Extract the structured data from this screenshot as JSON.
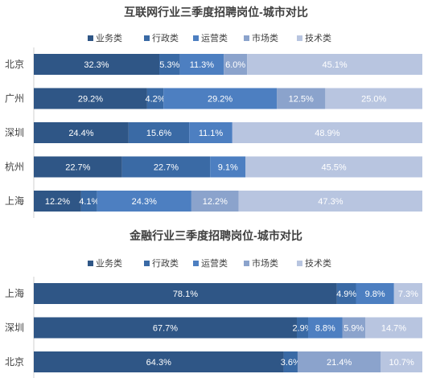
{
  "chart_data": [
    {
      "type": "bar",
      "stacked": "percent",
      "orientation": "horizontal",
      "title": "互联网行业三季度招聘岗位-城市对比",
      "legend_position": "top",
      "categories": [
        "北京",
        "广州",
        "深圳",
        "杭州",
        "上海"
      ],
      "series": [
        {
          "name": "业务类",
          "color": "#2f5686",
          "values": [
            32.3,
            29.2,
            24.4,
            22.7,
            12.2
          ],
          "labels": [
            "32.3%",
            "29.2%",
            "24.4%",
            "22.7%",
            "12.2%"
          ]
        },
        {
          "name": "行政类",
          "color": "#3a6aa5",
          "values": [
            5.3,
            4.2,
            15.6,
            22.7,
            4.1
          ],
          "labels": [
            "5.3%",
            "4.2%",
            "15.6%",
            "22.7%",
            "4.1%"
          ]
        },
        {
          "name": "运营类",
          "color": "#4d7fc1",
          "values": [
            11.3,
            29.2,
            11.1,
            9.1,
            24.3
          ],
          "labels": [
            "11.3%",
            "29.2%",
            "11.1%",
            "9.1%",
            "24.3%"
          ]
        },
        {
          "name": "市场类",
          "color": "#8ba3cc",
          "values": [
            6.0,
            12.5,
            0,
            0,
            12.2
          ],
          "labels": [
            "6.0%",
            "12.5%",
            "",
            "",
            "12.2%"
          ]
        },
        {
          "name": "技术类",
          "color": "#b8c5e0",
          "values": [
            45.1,
            25.0,
            48.9,
            45.5,
            47.3
          ],
          "labels": [
            "45.1%",
            "25.0%",
            "48.9%",
            "45.5%",
            "47.3%"
          ]
        }
      ]
    },
    {
      "type": "bar",
      "stacked": "percent",
      "orientation": "horizontal",
      "title": "金融行业三季度招聘岗位-城市对比",
      "legend_position": "top",
      "categories": [
        "上海",
        "深圳",
        "北京"
      ],
      "series": [
        {
          "name": "业务类",
          "color": "#2f5686",
          "values": [
            78.1,
            67.7,
            64.3
          ],
          "labels": [
            "78.1%",
            "67.7%",
            "64.3%"
          ]
        },
        {
          "name": "行政类",
          "color": "#3a6aa5",
          "values": [
            4.9,
            2.9,
            3.6
          ],
          "labels": [
            "4.9%",
            "2.9%",
            "3.6%"
          ]
        },
        {
          "name": "运营类",
          "color": "#4d7fc1",
          "values": [
            9.8,
            8.8,
            0
          ],
          "labels": [
            "9.8%",
            "8.8%",
            ""
          ]
        },
        {
          "name": "市场类",
          "color": "#8ba3cc",
          "values": [
            0,
            5.9,
            21.4
          ],
          "labels": [
            "",
            "5.9%",
            "21.4%"
          ]
        },
        {
          "name": "技术类",
          "color": "#b8c5e0",
          "values": [
            7.3,
            14.7,
            10.7
          ],
          "labels": [
            "7.3%",
            "14.7%",
            "10.7%"
          ]
        }
      ]
    }
  ]
}
